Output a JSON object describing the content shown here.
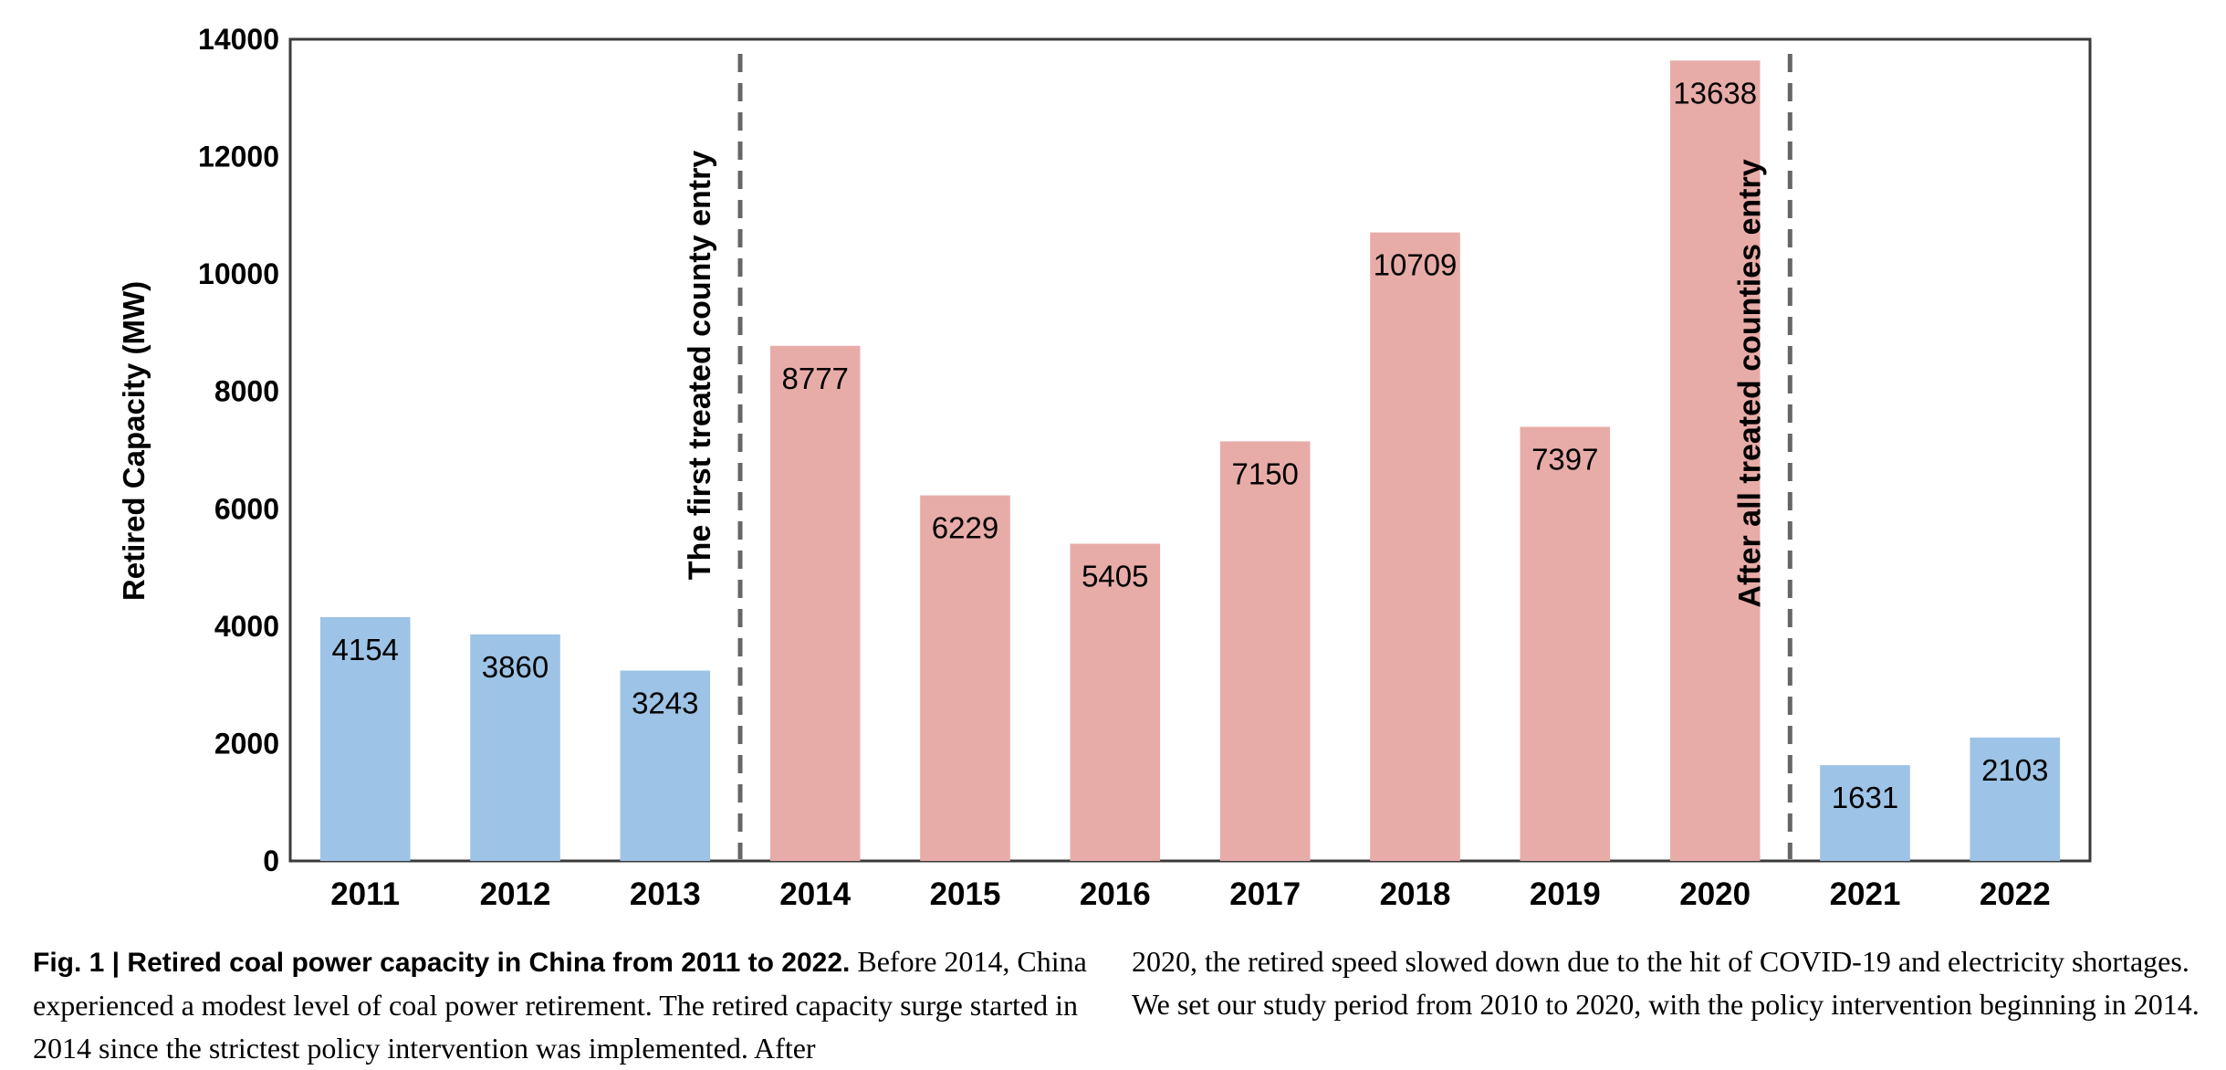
{
  "chart_data": {
    "type": "bar",
    "ylabel": "Retired Capacity (MW)",
    "xlabel": "",
    "ylim": [
      0,
      14000
    ],
    "yticks": [
      0,
      2000,
      4000,
      6000,
      8000,
      10000,
      12000,
      14000
    ],
    "grid": false,
    "categories": [
      "2011",
      "2012",
      "2013",
      "2014",
      "2015",
      "2016",
      "2017",
      "2018",
      "2019",
      "2020",
      "2021",
      "2022"
    ],
    "values": [
      4154,
      3860,
      3243,
      8777,
      6229,
      5405,
      7150,
      10709,
      7397,
      13638,
      1631,
      2103
    ],
    "bar_colors": [
      "#9dc3e6",
      "#9dc3e6",
      "#9dc3e6",
      "#e8aca8",
      "#e8aca8",
      "#e8aca8",
      "#e8aca8",
      "#e8aca8",
      "#e8aca8",
      "#e8aca8",
      "#9dc3e6",
      "#9dc3e6"
    ],
    "markers": [
      {
        "between": [
          "2013",
          "2014"
        ],
        "label": "The first treated county entry",
        "style": "dashed"
      },
      {
        "between": [
          "2020",
          "2021"
        ],
        "label": "After all treated counties entry",
        "style": "dashed"
      }
    ]
  },
  "caption": {
    "fig_label": "Fig. 1 | Retired coal power capacity in China from 2011 to 2022.",
    "left_text": "Before 2014, China experienced a modest level of coal power retirement. The retired capacity surge started in 2014 since the strictest policy intervention was implemented. After",
    "right_text": "2020, the retired speed slowed down due to the hit of COVID-19 and electricity shortages. We set our study period from 2010 to 2020, with the policy intervention beginning in 2014."
  }
}
